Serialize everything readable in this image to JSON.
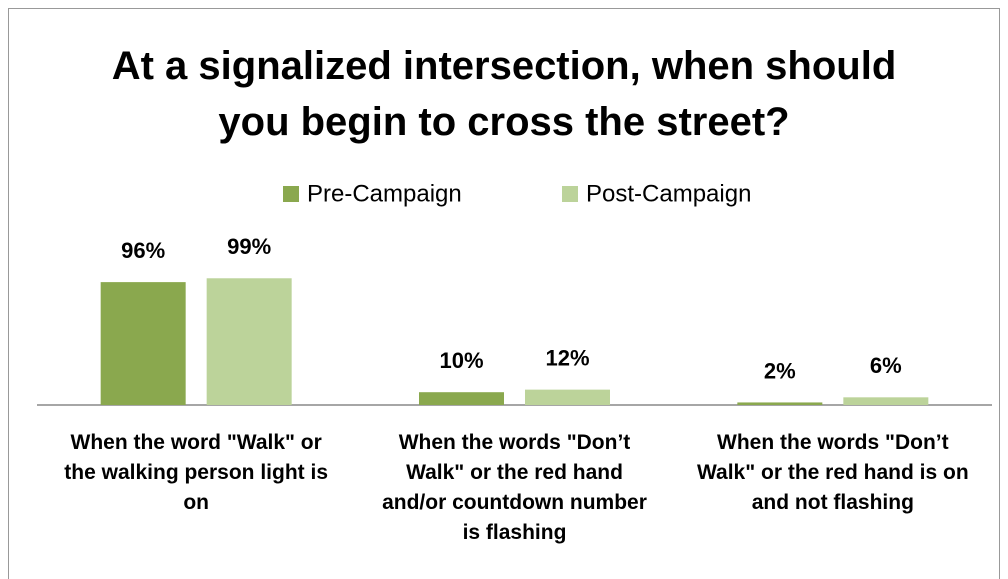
{
  "chart_data": {
    "type": "bar",
    "title": "At a signalized intersection, when should you begin to cross the street?",
    "categories": [
      "When the word \"Walk\" or the walking person light is on",
      "When the words \"Don’t Walk\" or the red hand and/or countdown number is flashing",
      "When the words \"Don’t Walk\" or the red hand is on and not flashing"
    ],
    "series": [
      {
        "name": "Pre-Campaign",
        "color": "#8aa84e",
        "values": [
          96,
          10,
          2
        ],
        "value_labels": [
          "96%",
          "10%",
          "2%"
        ]
      },
      {
        "name": "Post-Campaign",
        "color": "#bcd39a",
        "values": [
          99,
          12,
          6
        ],
        "value_labels": [
          "99%",
          "12%",
          "6%"
        ]
      }
    ],
    "legend": "top"
  }
}
